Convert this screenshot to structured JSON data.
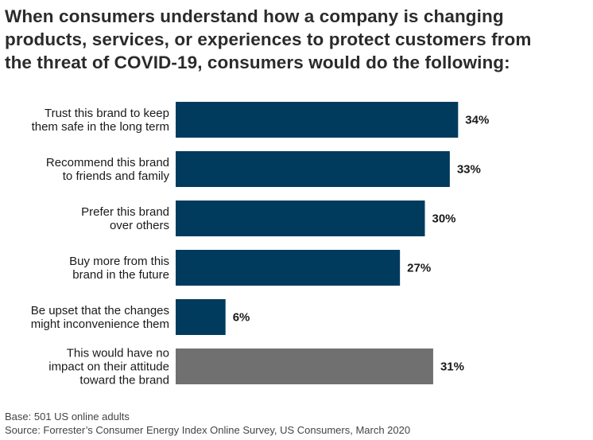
{
  "chart_data": {
    "type": "bar",
    "orientation": "horizontal",
    "title_lines": [
      "When consumers understand how a company is changing",
      "products, services, or experiences to protect customers from",
      "the threat of COVID-19, consumers would do the following:"
    ],
    "categories": [
      [
        "Trust this brand to keep",
        "them safe in the long term"
      ],
      [
        "Recommend this brand",
        "to friends and family"
      ],
      [
        "Prefer this brand",
        "over others"
      ],
      [
        "Buy more from this",
        "brand in the future"
      ],
      [
        "Be upset that the changes",
        "might inconvenience them"
      ],
      [
        "This would have no",
        "impact on their attitude",
        "toward the brand"
      ]
    ],
    "values": [
      34,
      33,
      30,
      27,
      6,
      31
    ],
    "value_labels": [
      "34%",
      "33%",
      "30%",
      "27%",
      "6%",
      "31%"
    ],
    "unit": "%",
    "xlim": [
      0,
      100
    ],
    "gridlines": false,
    "xlabel": "",
    "ylabel": ""
  },
  "colors": {
    "bar": "#003a5d",
    "bar_neutral": "#707070"
  },
  "footer": {
    "base": "Base: 501 US online adults",
    "source": "Source: Forrester’s Consumer Energy Index Online Survey, US Consumers, March 2020"
  }
}
